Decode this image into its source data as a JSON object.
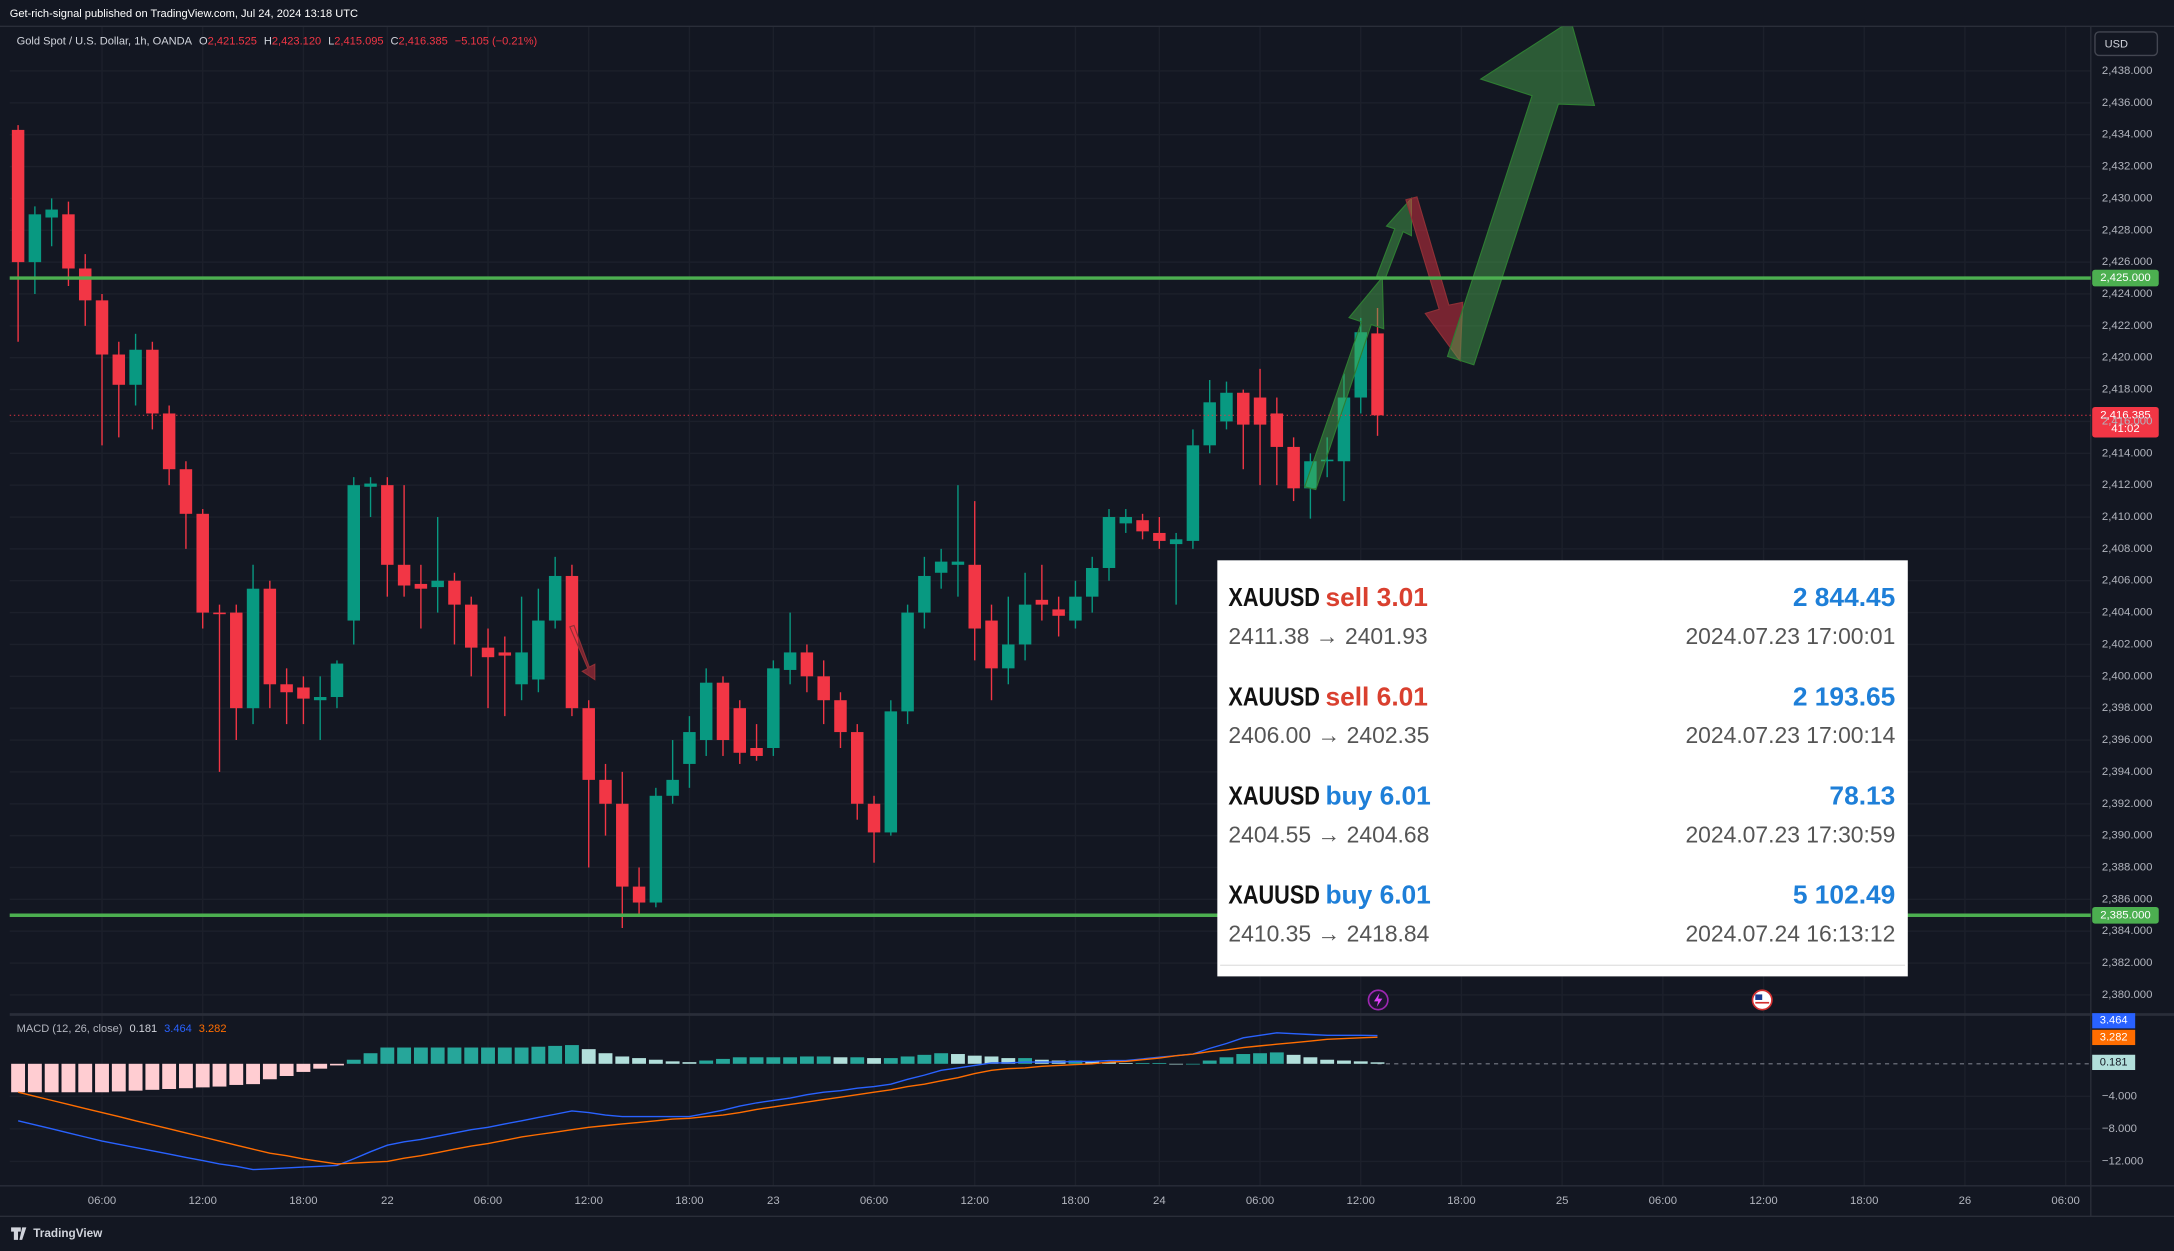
{
  "header": {
    "published": "Get-rich-signal published on TradingView.com, Jul 24, 2024 13:18 UTC",
    "symbol": "Gold Spot / U.S. Dollar, 1h, OANDA",
    "ohlc": [
      {
        "key": "O",
        "value": "2,421.525"
      },
      {
        "key": "H",
        "value": "2,423.120"
      },
      {
        "key": "L",
        "value": "2,415.095"
      },
      {
        "key": "C",
        "value": "2,416.385"
      }
    ],
    "change": "−5.105 (−0.21%)",
    "currency": "USD",
    "brand": "TradingView"
  },
  "chart_data": [
    {
      "type": "candlestick",
      "x": [
        0,
        1,
        2,
        3,
        4,
        5,
        6,
        7,
        8,
        9,
        10,
        11,
        12,
        13,
        14,
        15,
        16,
        17,
        18,
        19,
        20,
        21,
        22,
        23,
        24,
        25,
        26,
        27,
        28,
        29,
        30,
        31,
        32,
        33,
        34,
        35,
        36,
        37,
        38,
        39,
        40,
        41,
        42,
        43,
        44,
        45,
        46,
        47,
        48,
        49,
        50,
        51,
        52,
        53,
        54,
        55,
        56,
        57,
        58,
        59,
        60,
        61,
        62,
        63,
        64,
        65,
        66,
        67,
        68,
        69,
        70,
        71,
        72,
        73,
        74,
        75,
        76,
        77,
        78,
        79,
        80,
        81
      ],
      "open": [
        2434.3,
        2426,
        2428.8,
        2429,
        2425.6,
        2423.6,
        2420.2,
        2418.3,
        2420.5,
        2416.5,
        2413,
        2410.2,
        2404,
        2404,
        2398,
        2405.5,
        2399.5,
        2399.3,
        2398.5,
        2398.7,
        2403.5,
        2411.9,
        2412,
        2407,
        2405.8,
        2405.6,
        2406,
        2404.5,
        2401.8,
        2401.5,
        2399.5,
        2399.8,
        2403.5,
        2406.3,
        2398,
        2393.5,
        2392,
        2386.8,
        2385.8,
        2392.5,
        2394.5,
        2396,
        2399.6,
        2398,
        2395.5,
        2395.5,
        2400.4,
        2401.5,
        2400,
        2398.5,
        2396.5,
        2392,
        2390.2,
        2397.8,
        2404,
        2406.5,
        2407,
        2407,
        2403.5,
        2400.5,
        2402,
        2404.8,
        2404.2,
        2403.5,
        2405,
        2406.8,
        2409.6,
        2409.8,
        2409,
        2408.3,
        2408.5,
        2414.5,
        2416,
        2417.8,
        2417.5,
        2416.5,
        2414.4,
        2411.8,
        2413.5,
        2413.5,
        2417.5,
        2421.525
      ],
      "high": [
        2434.6,
        2429.5,
        2430,
        2429.8,
        2426.5,
        2424,
        2421,
        2421.5,
        2421,
        2417,
        2413.5,
        2410.5,
        2404.5,
        2404.5,
        2407,
        2406,
        2400.5,
        2400,
        2400,
        2401,
        2412.5,
        2412.5,
        2412.5,
        2412,
        2407,
        2410,
        2406.5,
        2405,
        2403,
        2402.5,
        2405,
        2405.5,
        2407.5,
        2407,
        2398.5,
        2394.5,
        2394,
        2388,
        2393,
        2396,
        2397.5,
        2400.5,
        2400,
        2398.5,
        2397,
        2401,
        2404,
        2402,
        2401,
        2399,
        2397,
        2392.5,
        2398.5,
        2404.5,
        2407.5,
        2408,
        2412,
        2411,
        2404.5,
        2405,
        2406.5,
        2407,
        2405,
        2406,
        2407.5,
        2410.5,
        2410.5,
        2410.2,
        2410,
        2409,
        2415.5,
        2418.6,
        2418.5,
        2418,
        2419.3,
        2417.5,
        2415,
        2414,
        2415,
        2419,
        2422.5,
        2423.12
      ],
      "low": [
        2421,
        2424,
        2427,
        2424.5,
        2422,
        2414.5,
        2415,
        2417,
        2415.5,
        2412,
        2408,
        2403,
        2394,
        2396,
        2397,
        2398,
        2397,
        2397,
        2396,
        2398,
        2402,
        2410,
        2405,
        2405,
        2403,
        2404,
        2402,
        2400,
        2398,
        2397.5,
        2398.5,
        2399,
        2403,
        2397.5,
        2388,
        2390,
        2384.2,
        2385,
        2385.5,
        2392,
        2393,
        2395,
        2395,
        2394.5,
        2394.7,
        2395,
        2399.5,
        2399,
        2397,
        2395.5,
        2391,
        2388.3,
        2390,
        2397,
        2403,
        2405.5,
        2405,
        2401,
        2398.5,
        2399.5,
        2401,
        2403.5,
        2402.5,
        2403,
        2404,
        2406,
        2409,
        2408.6,
        2408,
        2404.5,
        2408,
        2414,
        2415.5,
        2413,
        2412,
        2412,
        2411,
        2409.9,
        2412.5,
        2411,
        2416.5,
        2415.095
      ],
      "close": [
        2426,
        2429,
        2429.3,
        2425.6,
        2423.6,
        2420.2,
        2418.3,
        2420.5,
        2416.5,
        2413,
        2410.2,
        2404,
        2403.9,
        2398,
        2405.5,
        2399.5,
        2399,
        2398.6,
        2398.7,
        2400.8,
        2412,
        2412.1,
        2407,
        2405.7,
        2405.5,
        2406,
        2404.5,
        2401.8,
        2401.2,
        2401.3,
        2401.5,
        2403.5,
        2406.3,
        2398,
        2393.5,
        2392,
        2386.8,
        2385.8,
        2392.5,
        2393.5,
        2396.5,
        2399.6,
        2396,
        2395.2,
        2395,
        2400.5,
        2401.5,
        2400,
        2398.5,
        2396.5,
        2392,
        2390.2,
        2397.8,
        2404,
        2406.3,
        2407.2,
        2407.2,
        2403,
        2400.5,
        2402,
        2404.5,
        2404.5,
        2403.8,
        2405,
        2406.8,
        2410,
        2410,
        2409.1,
        2408.5,
        2408.6,
        2414.5,
        2417.2,
        2417.8,
        2415.8,
        2415.8,
        2414.4,
        2411.8,
        2413.5,
        2413.6,
        2417.5,
        2421.6,
        2416.385
      ],
      "up_color": "#089981",
      "down_color": "#f23645",
      "xlim": [
        -0.5,
        123.5
      ],
      "xticks": [
        {
          "value": 5,
          "label": "06:00"
        },
        {
          "value": 11,
          "label": "12:00"
        },
        {
          "value": 17,
          "label": "18:00"
        },
        {
          "value": 22,
          "label": "22"
        },
        {
          "value": 28,
          "label": "06:00"
        },
        {
          "value": 34,
          "label": "12:00"
        },
        {
          "value": 40,
          "label": "18:00"
        },
        {
          "value": 45,
          "label": "23"
        },
        {
          "value": 51,
          "label": "06:00"
        },
        {
          "value": 57,
          "label": "12:00"
        },
        {
          "value": 63,
          "label": "18:00"
        },
        {
          "value": 68,
          "label": "24"
        },
        {
          "value": 74,
          "label": "06:00"
        },
        {
          "value": 80,
          "label": "12:00"
        },
        {
          "value": 86,
          "label": "18:00"
        },
        {
          "value": 92,
          "label": "25"
        },
        {
          "value": 98,
          "label": "06:00"
        },
        {
          "value": 104,
          "label": "12:00"
        },
        {
          "value": 110,
          "label": "18:00"
        },
        {
          "value": 116,
          "label": "26"
        },
        {
          "value": 122,
          "label": "06:00"
        }
      ],
      "ylim": [
        2378.9,
        2440.8
      ],
      "yticks": [
        {
          "value": 2380,
          "label": "2,380.000"
        },
        {
          "value": 2382,
          "label": "2,382.000"
        },
        {
          "value": 2384,
          "label": "2,384.000"
        },
        {
          "value": 2386,
          "label": "2,386.000"
        },
        {
          "value": 2388,
          "label": "2,388.000"
        },
        {
          "value": 2390,
          "label": "2,390.000"
        },
        {
          "value": 2392,
          "label": "2,392.000"
        },
        {
          "value": 2394,
          "label": "2,394.000"
        },
        {
          "value": 2396,
          "label": "2,396.000"
        },
        {
          "value": 2398,
          "label": "2,398.000"
        },
        {
          "value": 2400,
          "label": "2,400.000"
        },
        {
          "value": 2402,
          "label": "2,402.000"
        },
        {
          "value": 2404,
          "label": "2,404.000"
        },
        {
          "value": 2406,
          "label": "2,406.000"
        },
        {
          "value": 2408,
          "label": "2,408.000"
        },
        {
          "value": 2410,
          "label": "2,410.000"
        },
        {
          "value": 2412,
          "label": "2,412.000"
        },
        {
          "value": 2414,
          "label": "2,414.000"
        },
        {
          "value": 2416,
          "label": "2,416.000"
        },
        {
          "value": 2418,
          "label": "2,418.000"
        },
        {
          "value": 2420,
          "label": "2,420.000"
        },
        {
          "value": 2422,
          "label": "2,422.000"
        },
        {
          "value": 2424,
          "label": "2,424.000"
        },
        {
          "value": 2426,
          "label": "2,426.000"
        },
        {
          "value": 2428,
          "label": "2,428.000"
        },
        {
          "value": 2430,
          "label": "2,430.000"
        },
        {
          "value": 2432,
          "label": "2,432.000"
        },
        {
          "value": 2434,
          "label": "2,434.000"
        },
        {
          "value": 2436,
          "label": "2,436.000"
        },
        {
          "value": 2438,
          "label": "2,438.000"
        }
      ],
      "grid": true,
      "levels": [
        {
          "value": 2425,
          "label": "2,425.000"
        },
        {
          "value": 2385,
          "label": "2,385.000"
        }
      ],
      "level_color": "#4caf50",
      "last_price": {
        "value": 2416.385,
        "label": "2,416.385",
        "countdown": "41:02"
      }
    },
    {
      "type": "macd",
      "title": "MACD (12, 26, close)",
      "x": [
        0,
        1,
        2,
        3,
        4,
        5,
        6,
        7,
        8,
        9,
        10,
        11,
        12,
        13,
        14,
        15,
        16,
        17,
        18,
        19,
        20,
        21,
        22,
        23,
        24,
        25,
        26,
        27,
        28,
        29,
        30,
        31,
        32,
        33,
        34,
        35,
        36,
        37,
        38,
        39,
        40,
        41,
        42,
        43,
        44,
        45,
        46,
        47,
        48,
        49,
        50,
        51,
        52,
        53,
        54,
        55,
        56,
        57,
        58,
        59,
        60,
        61,
        62,
        63,
        64,
        65,
        66,
        67,
        68,
        69,
        70,
        71,
        72,
        73,
        74,
        75,
        76,
        77,
        78,
        79,
        80,
        81
      ],
      "histogram": {
        "colors": [
          "#26a69a",
          "#b2dfdb",
          "#ff5252",
          "#ffcdd2"
        ],
        "values": [
          -3.5,
          -3.5,
          -3.5,
          -3.5,
          -3.5,
          -3.5,
          -3.4,
          -3.3,
          -3.2,
          -3.1,
          -3,
          -2.9,
          -2.8,
          -2.6,
          -2.5,
          -1.9,
          -1.5,
          -1,
          -0.6,
          -0.2,
          0.5,
          1.3,
          2,
          2,
          2,
          2,
          2,
          2,
          2,
          2,
          2,
          2.1,
          2.2,
          2.3,
          1.8,
          1.3,
          0.9,
          0.7,
          0.5,
          0.3,
          0.2,
          0.4,
          0.6,
          0.8,
          0.8,
          0.8,
          0.8,
          0.9,
          0.9,
          0.8,
          0.8,
          0.7,
          0.7,
          0.9,
          1.1,
          1.3,
          1.2,
          1,
          0.9,
          0.7,
          0.7,
          0.5,
          0.4,
          0.4,
          0.3,
          0.2,
          0.1,
          0.1,
          0.1,
          0,
          0,
          0.4,
          0.8,
          1.2,
          1.3,
          1.4,
          1.1,
          0.8,
          0.5,
          0.4,
          0.3,
          0.181
        ]
      },
      "series": [
        {
          "color": "#2962ff",
          "values": [
            -7,
            -7.5,
            -8,
            -8.5,
            -9,
            -9.5,
            -9.9,
            -10.3,
            -10.7,
            -11.1,
            -11.5,
            -11.9,
            -12.3,
            -12.6,
            -13,
            -12.9,
            -12.8,
            -12.7,
            -12.6,
            -12.5,
            -11.7,
            -10.8,
            -10,
            -9.6,
            -9.3,
            -8.9,
            -8.5,
            -8.1,
            -7.8,
            -7.4,
            -7,
            -6.6,
            -6.2,
            -5.8,
            -6,
            -6.3,
            -6.5,
            -6.5,
            -6.5,
            -6.5,
            -6.5,
            -6.1,
            -5.7,
            -5.2,
            -4.8,
            -4.5,
            -4.2,
            -3.8,
            -3.5,
            -3.3,
            -3,
            -2.8,
            -2.5,
            -1.9,
            -1.4,
            -0.8,
            -0.5,
            -0.2,
            0.1,
            0.1,
            0.2,
            0.2,
            0.2,
            0.3,
            0.3,
            0.4,
            0.4,
            0.6,
            0.8,
            1,
            1.2,
            1.9,
            2.5,
            3.2,
            3.5,
            3.8,
            3.7,
            3.6,
            3.5,
            3.5,
            3.5,
            3.464
          ]
        },
        {
          "color": "#ff6d00",
          "values": [
            -3.5,
            -4,
            -4.5,
            -5,
            -5.5,
            -6,
            -6.5,
            -7,
            -7.5,
            -8,
            -8.5,
            -9,
            -9.5,
            -10,
            -10.5,
            -11,
            -11.3,
            -11.7,
            -12,
            -12.3,
            -12.2,
            -12.1,
            -12,
            -11.6,
            -11.3,
            -10.9,
            -10.5,
            -10.1,
            -9.8,
            -9.4,
            -9,
            -8.7,
            -8.4,
            -8.1,
            -7.8,
            -7.6,
            -7.4,
            -7.2,
            -7,
            -6.8,
            -6.7,
            -6.5,
            -6.3,
            -6,
            -5.6,
            -5.3,
            -5,
            -4.7,
            -4.4,
            -4.1,
            -3.8,
            -3.5,
            -3.2,
            -2.8,
            -2.5,
            -2.1,
            -1.7,
            -1.2,
            -0.8,
            -0.6,
            -0.5,
            -0.3,
            -0.2,
            -0.1,
            0,
            0.2,
            0.3,
            0.5,
            0.7,
            1,
            1.2,
            1.5,
            1.7,
            2,
            2.2,
            2.4,
            2.6,
            2.8,
            3,
            3.1,
            3.2,
            3.282
          ]
        }
      ],
      "xlim": [
        -0.5,
        123.5
      ],
      "ylim": [
        -15,
        5.8
      ],
      "yticks": [
        {
          "value": -4,
          "label": "−4.000"
        },
        {
          "value": -8,
          "label": "−8.000"
        },
        {
          "value": -12,
          "label": "−12.000"
        }
      ]
    }
  ],
  "trades": {
    "profit_color": "#1e7fd8",
    "rows": [
      {
        "symbol": "XAUUSD",
        "side": "sell 3.01",
        "side_color": "#d9402f",
        "profit": "2 844.45",
        "prices": "2411.38 → 2401.93",
        "time": "2024.07.23 17:00:01"
      },
      {
        "symbol": "XAUUSD",
        "side": "sell 6.01",
        "side_color": "#d9402f",
        "profit": "2 193.65",
        "prices": "2406.00 → 2402.35",
        "time": "2024.07.23 17:00:14"
      },
      {
        "symbol": "XAUUSD",
        "side": "buy 6.01",
        "side_color": "#1e7fd8",
        "profit": "78.13",
        "prices": "2404.55 → 2404.68",
        "time": "2024.07.23 17:30:59"
      },
      {
        "symbol": "XAUUSD",
        "side": "buy 6.01",
        "side_color": "#1e7fd8",
        "profit": "5 102.49",
        "prices": "2410.35 → 2418.84",
        "time": "2024.07.24 16:13:12"
      }
    ]
  }
}
